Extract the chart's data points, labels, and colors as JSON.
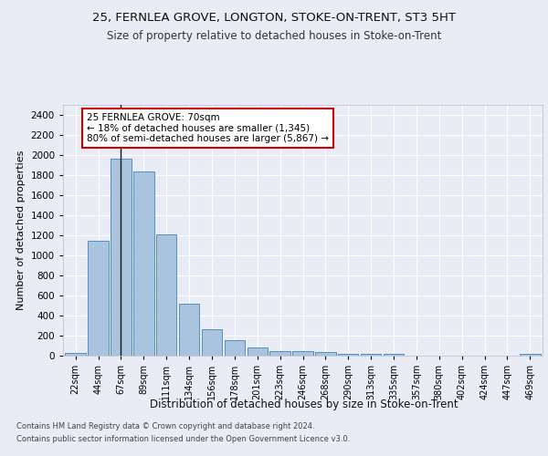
{
  "title1": "25, FERNLEA GROVE, LONGTON, STOKE-ON-TRENT, ST3 5HT",
  "title2": "Size of property relative to detached houses in Stoke-on-Trent",
  "xlabel": "Distribution of detached houses by size in Stoke-on-Trent",
  "ylabel": "Number of detached properties",
  "categories": [
    "22sqm",
    "44sqm",
    "67sqm",
    "89sqm",
    "111sqm",
    "134sqm",
    "156sqm",
    "178sqm",
    "201sqm",
    "223sqm",
    "246sqm",
    "268sqm",
    "290sqm",
    "313sqm",
    "335sqm",
    "357sqm",
    "380sqm",
    "402sqm",
    "424sqm",
    "447sqm",
    "469sqm"
  ],
  "values": [
    30,
    1150,
    1960,
    1840,
    1210,
    515,
    265,
    155,
    80,
    50,
    42,
    35,
    20,
    20,
    15,
    0,
    0,
    0,
    0,
    0,
    20
  ],
  "bar_color": "#aac4e0",
  "bar_edge_color": "#5090c0",
  "property_line_x": 2,
  "annotation_text": "25 FERNLEA GROVE: 70sqm\n← 18% of detached houses are smaller (1,345)\n80% of semi-detached houses are larger (5,867) →",
  "annotation_box_color": "#ffffff",
  "annotation_box_edge": "#cc0000",
  "ylim": [
    0,
    2500
  ],
  "yticks": [
    0,
    200,
    400,
    600,
    800,
    1000,
    1200,
    1400,
    1600,
    1800,
    2000,
    2200,
    2400
  ],
  "footnote1": "Contains HM Land Registry data © Crown copyright and database right 2024.",
  "footnote2": "Contains public sector information licensed under the Open Government Licence v3.0.",
  "bg_color": "#eaecf5",
  "plot_bg_color": "#eaecf5",
  "grid_color": "#ffffff",
  "title1_fontsize": 9.5,
  "title2_fontsize": 8.5,
  "xlabel_fontsize": 8.5,
  "ylabel_fontsize": 8
}
